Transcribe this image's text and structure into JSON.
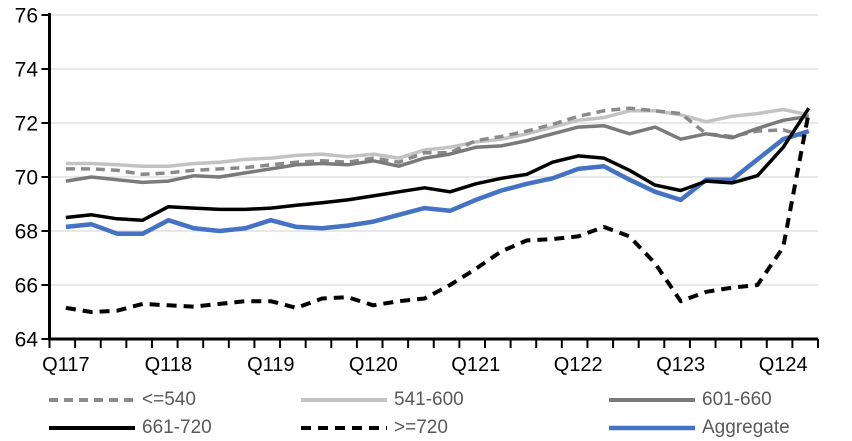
{
  "chart_data": {
    "type": "line",
    "title": "",
    "xlabel": "",
    "ylabel": "",
    "grid": "horizontal",
    "legend_position": "bottom",
    "background": "#ffffff",
    "gridline_color": "#d9d9d9",
    "axis_color": "#000000",
    "axis_label_color": "#000000",
    "legend_text_color": "#595959",
    "ylim": [
      64,
      76
    ],
    "yticks": [
      "64",
      "66",
      "68",
      "70",
      "72",
      "74",
      "76"
    ],
    "x_year_labels": [
      "Q117",
      "Q118",
      "Q119",
      "Q120",
      "Q121",
      "Q122",
      "Q123",
      "Q124"
    ],
    "x": [
      "Q117",
      "Q217",
      "Q317",
      "Q417",
      "Q118",
      "Q218",
      "Q318",
      "Q418",
      "Q119",
      "Q219",
      "Q319",
      "Q419",
      "Q120",
      "Q220",
      "Q320",
      "Q420",
      "Q121",
      "Q221",
      "Q321",
      "Q421",
      "Q122",
      "Q222",
      "Q322",
      "Q422",
      "Q123",
      "Q223",
      "Q323",
      "Q423",
      "Q124",
      "Q224"
    ],
    "series": [
      {
        "key": "le540",
        "name": "<=540",
        "color": "#8a8a8a",
        "dash": "9 6",
        "width": 3.5,
        "values": [
          70.3,
          70.3,
          70.25,
          70.1,
          70.15,
          70.25,
          70.3,
          70.35,
          70.45,
          70.55,
          70.6,
          70.55,
          70.7,
          70.55,
          70.9,
          70.9,
          71.35,
          71.5,
          71.7,
          71.95,
          72.25,
          72.45,
          72.55,
          72.45,
          72.35,
          71.6,
          71.5,
          71.7,
          71.75,
          71.45
        ]
      },
      {
        "key": "s541to600",
        "name": "541-600",
        "color": "#c3c3c3",
        "dash": "",
        "width": 3.5,
        "values": [
          70.5,
          70.5,
          70.45,
          70.4,
          70.4,
          70.5,
          70.55,
          70.65,
          70.7,
          70.8,
          70.85,
          70.75,
          70.85,
          70.7,
          71.0,
          71.1,
          71.3,
          71.4,
          71.6,
          71.85,
          72.1,
          72.2,
          72.45,
          72.45,
          72.3,
          72.05,
          72.25,
          72.35,
          72.5,
          72.3
        ]
      },
      {
        "key": "s601to660",
        "name": "601-660",
        "color": "#7a7a7a",
        "dash": "",
        "width": 3.5,
        "values": [
          69.85,
          70.0,
          69.9,
          69.8,
          69.85,
          70.05,
          70.0,
          70.15,
          70.3,
          70.45,
          70.5,
          70.45,
          70.6,
          70.4,
          70.7,
          70.85,
          71.1,
          71.15,
          71.35,
          71.6,
          71.85,
          71.9,
          71.6,
          71.85,
          71.4,
          71.6,
          71.45,
          71.8,
          72.1,
          72.25
        ]
      },
      {
        "key": "s661to720",
        "name": "661-720",
        "color": "#000000",
        "dash": "",
        "width": 3.5,
        "values": [
          68.5,
          68.6,
          68.45,
          68.4,
          68.9,
          68.85,
          68.8,
          68.8,
          68.85,
          68.95,
          69.05,
          69.15,
          69.3,
          69.45,
          69.6,
          69.45,
          69.75,
          69.95,
          70.1,
          70.55,
          70.78,
          70.7,
          70.25,
          69.7,
          69.5,
          69.85,
          69.78,
          70.05,
          71.1,
          72.55
        ]
      },
      {
        "key": "ge720",
        "name": ">=720",
        "color": "#000000",
        "dash": "10 7",
        "width": 4,
        "values": [
          65.15,
          65.0,
          65.05,
          65.3,
          65.25,
          65.2,
          65.3,
          65.4,
          65.4,
          65.15,
          65.5,
          65.55,
          65.25,
          65.4,
          65.5,
          66.0,
          66.6,
          67.25,
          67.65,
          67.7,
          67.8,
          68.15,
          67.8,
          66.8,
          65.4,
          65.75,
          65.9,
          66.0,
          67.4,
          72.4
        ]
      },
      {
        "key": "aggregate",
        "name": "Aggregate",
        "color": "#4472c4",
        "dash": "",
        "width": 4.5,
        "values": [
          68.15,
          68.25,
          67.9,
          67.9,
          68.4,
          68.1,
          68.0,
          68.1,
          68.4,
          68.15,
          68.1,
          68.2,
          68.35,
          68.6,
          68.85,
          68.75,
          69.15,
          69.5,
          69.75,
          69.95,
          70.3,
          70.4,
          69.9,
          69.45,
          69.15,
          69.9,
          69.9,
          70.65,
          71.4,
          71.7
        ]
      }
    ],
    "draw_order": [
      "s541to600",
      "le540",
      "s601to660",
      "aggregate",
      "s661to720",
      "ge720"
    ],
    "legend_rows": [
      [
        "le540",
        "s541to600",
        "s601to660"
      ],
      [
        "s661to720",
        "ge720",
        "aggregate"
      ]
    ]
  }
}
